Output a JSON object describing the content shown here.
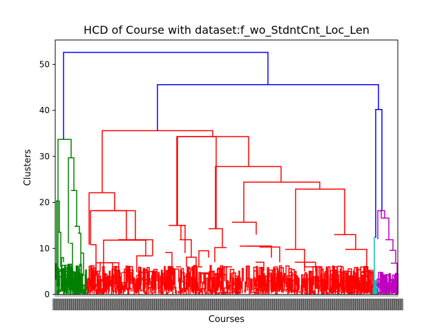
{
  "chart_data": {
    "type": "dendrogram",
    "title": "HCD of Course with dataset:f_wo_StdntCnt_Loc_Len",
    "xlabel": "Courses",
    "ylabel": "Clusters",
    "ylim": [
      0,
      55.3
    ],
    "yticks": [
      0,
      10,
      20,
      30,
      40,
      50
    ],
    "grid": false,
    "colors": {
      "root": "#0000ff",
      "cluster_green": "#008000",
      "cluster_red": "#ff0000",
      "cluster_cyan": "#00bfbf",
      "cluster_magenta": "#bf00bf"
    },
    "main_merges": [
      {
        "height": 52.6,
        "between": [
          "green cluster",
          "rest"
        ],
        "color": "root"
      },
      {
        "height": 45.6,
        "between": [
          "red cluster",
          "cyan+magenta"
        ],
        "color": "root"
      },
      {
        "height": 40.2,
        "between": [
          "cyan cluster",
          "magenta cluster"
        ],
        "color": "root"
      },
      {
        "height": 33.7,
        "cluster": "green",
        "color": "cluster_green"
      },
      {
        "height": 35.6,
        "cluster": "red",
        "color": "cluster_red"
      },
      {
        "height": 12.4,
        "cluster": "cyan",
        "color": "cluster_cyan"
      },
      {
        "height": 18.2,
        "cluster": "magenta",
        "color": "cluster_magenta"
      }
    ],
    "red_sub_merges": [
      35.6,
      34.3,
      27.8,
      24.4,
      22.9,
      22.1,
      18.2,
      15.7,
      14.3,
      13.0,
      11.9,
      9.8
    ]
  }
}
